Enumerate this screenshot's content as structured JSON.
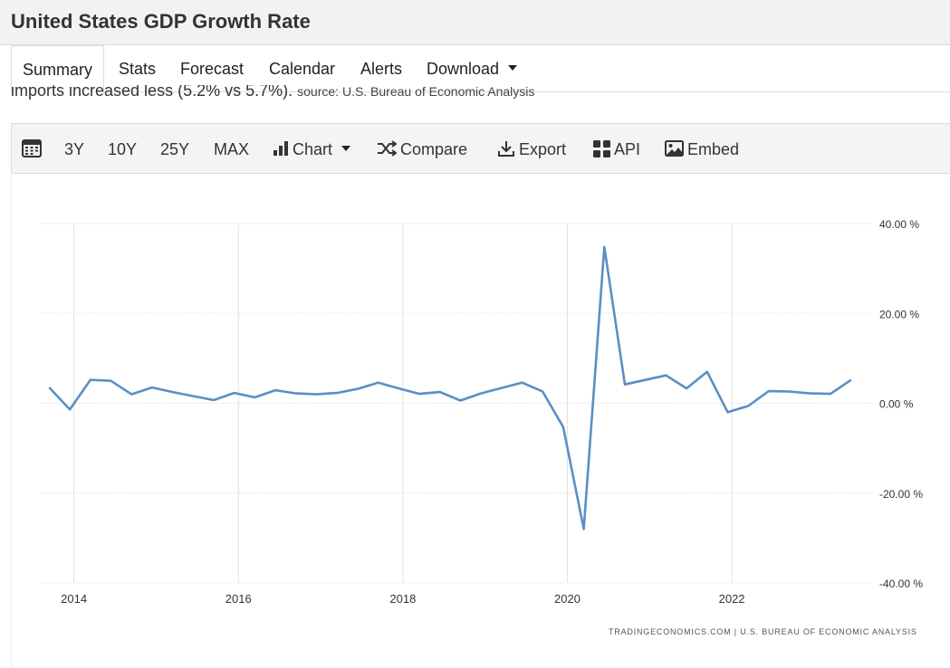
{
  "page": {
    "title": "United States GDP Growth Rate"
  },
  "tabs": [
    {
      "label": "Summary"
    },
    {
      "label": "Stats"
    },
    {
      "label": "Forecast"
    },
    {
      "label": "Calendar"
    },
    {
      "label": "Alerts"
    },
    {
      "label": "Download"
    }
  ],
  "description": {
    "text": "imports increased less (5.2% vs 5.7%).",
    "source": "source: U.S. Bureau of Economic Analysis"
  },
  "toolbar": {
    "range_3y": "3Y",
    "range_10y": "10Y",
    "range_25y": "25Y",
    "range_max": "MAX",
    "chart": "Chart",
    "compare": "Compare",
    "export": "Export",
    "api": "API",
    "embed": "Embed"
  },
  "chart_data": {
    "type": "line",
    "title": "",
    "xlabel": "",
    "ylabel": "",
    "x_ticks": [
      "2014",
      "2016",
      "2018",
      "2020",
      "2022"
    ],
    "y_ticks": [
      "40.00 %",
      "20.00 %",
      "0.00 %",
      "-20.00 %",
      "-40.00 %"
    ],
    "ylim": [
      -40,
      40
    ],
    "grid": true,
    "legend": "none",
    "line_color": "#5a8fc4",
    "credit": "TRADINGECONOMICS.COM | U.S. BUREAU OF ECONOMIC ANALYSIS",
    "series": [
      {
        "x": [
          "2013 Q4",
          "2014 Q1",
          "2014 Q2",
          "2014 Q3",
          "2014 Q4",
          "2015 Q1",
          "2015 Q2",
          "2015 Q3",
          "2015 Q4",
          "2016 Q1",
          "2016 Q2",
          "2016 Q3",
          "2016 Q4",
          "2017 Q1",
          "2017 Q2",
          "2017 Q3",
          "2017 Q4",
          "2018 Q1",
          "2018 Q2",
          "2018 Q3",
          "2018 Q4",
          "2019 Q1",
          "2019 Q2",
          "2019 Q3",
          "2019 Q4",
          "2020 Q1",
          "2020 Q2",
          "2020 Q3",
          "2020 Q4",
          "2021 Q1",
          "2021 Q2",
          "2021 Q3",
          "2021 Q4",
          "2022 Q1",
          "2022 Q2",
          "2022 Q3",
          "2022 Q4",
          "2023 Q1",
          "2023 Q2",
          "2023 Q3"
        ],
        "values": [
          3.5,
          -1.4,
          5.2,
          5.0,
          2.0,
          3.5,
          2.5,
          1.6,
          0.7,
          2.3,
          1.3,
          2.9,
          2.2,
          2.0,
          2.3,
          3.2,
          4.6,
          3.3,
          2.1,
          2.5,
          0.6,
          2.2,
          3.4,
          4.6,
          2.6,
          -5.3,
          -28.0,
          34.8,
          4.2,
          5.2,
          6.2,
          3.3,
          7.0,
          -2.0,
          -0.6,
          2.7,
          2.6,
          2.2,
          2.1,
          5.2
        ]
      }
    ]
  }
}
